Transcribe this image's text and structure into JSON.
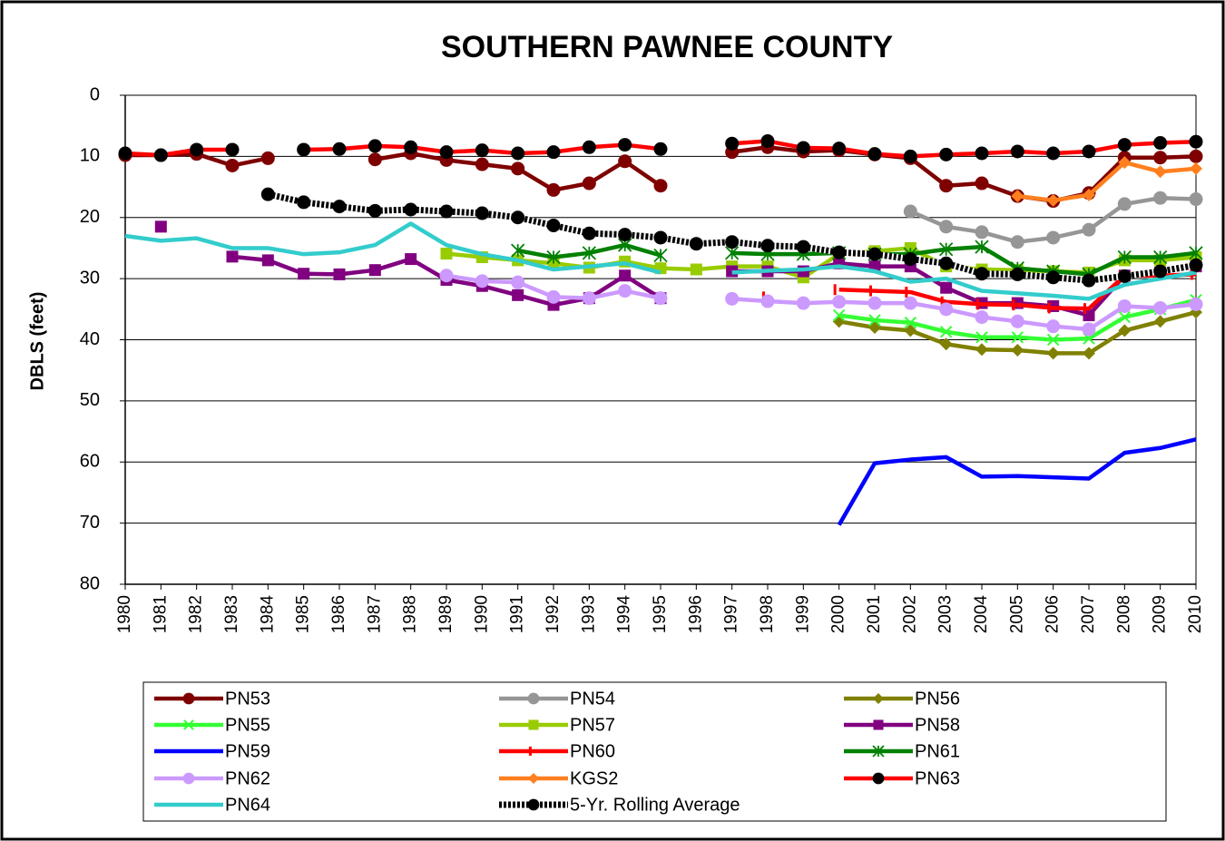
{
  "chart_data": {
    "type": "line",
    "title": "SOUTHERN PAWNEE COUNTY",
    "ylabel": "DBLS (feet)",
    "categories": [
      "1980",
      "1981",
      "1982",
      "1983",
      "1984",
      "1985",
      "1986",
      "1987",
      "1988",
      "1989",
      "1990",
      "1991",
      "1992",
      "1993",
      "1994",
      "1995",
      "1996",
      "1997",
      "1998",
      "1999",
      "2000",
      "2001",
      "2002",
      "2003",
      "2004",
      "2005",
      "2006",
      "2007",
      "2008",
      "2009",
      "2010"
    ],
    "ylim": [
      0,
      80
    ],
    "yticks": [
      0,
      10,
      20,
      30,
      40,
      50,
      60,
      70,
      80
    ],
    "yinvert": true,
    "grid": true,
    "legend": "bottom",
    "series": [
      {
        "name": "PN53",
        "color": "#7f0000",
        "marker": "circle",
        "values": [
          9.8,
          9.8,
          9.6,
          11.5,
          10.3,
          null,
          null,
          10.5,
          9.5,
          10.6,
          11.3,
          12.0,
          15.5,
          14.4,
          10.8,
          14.8,
          null,
          9.3,
          8.5,
          9.2,
          9.0,
          9.7,
          10.3,
          14.8,
          14.4,
          16.5,
          17.3,
          16.0,
          10.2,
          10.2,
          10.0
        ]
      },
      {
        "name": "PN54",
        "color": "#969696",
        "marker": "circle",
        "values": [
          null,
          null,
          null,
          null,
          null,
          null,
          null,
          null,
          null,
          null,
          null,
          null,
          null,
          null,
          null,
          null,
          null,
          null,
          null,
          null,
          null,
          null,
          19.0,
          21.5,
          22.4,
          24.0,
          23.3,
          22.0,
          17.8,
          16.8,
          17.0
        ]
      },
      {
        "name": "PN56",
        "color": "#808000",
        "marker": "diamond",
        "values": [
          null,
          null,
          null,
          null,
          null,
          null,
          null,
          null,
          null,
          null,
          null,
          null,
          null,
          null,
          null,
          null,
          null,
          null,
          null,
          null,
          37.0,
          38.0,
          38.5,
          40.7,
          41.6,
          41.7,
          42.2,
          42.2,
          38.5,
          37.0,
          35.5
        ]
      },
      {
        "name": "PN55",
        "color": "#33ff33",
        "marker": "x",
        "values": [
          null,
          null,
          null,
          null,
          null,
          null,
          null,
          null,
          null,
          null,
          null,
          null,
          null,
          null,
          null,
          null,
          null,
          null,
          null,
          null,
          36.0,
          36.8,
          37.2,
          38.7,
          39.6,
          39.6,
          40.0,
          39.8,
          36.3,
          35.0,
          33.5
        ]
      },
      {
        "name": "PN57",
        "color": "#99cc00",
        "marker": "square",
        "values": [
          null,
          null,
          null,
          null,
          null,
          null,
          null,
          null,
          null,
          25.9,
          26.5,
          27.0,
          27.5,
          28.2,
          27.2,
          28.3,
          28.5,
          28.0,
          28.0,
          29.8,
          26.0,
          25.5,
          25.0,
          28.0,
          28.5,
          28.6,
          28.8,
          29.0,
          27.0,
          27.0,
          26.5
        ]
      },
      {
        "name": "PN58",
        "color": "#800080",
        "marker": "square",
        "values": [
          null,
          21.5,
          null,
          26.4,
          27.0,
          29.2,
          29.3,
          28.6,
          26.8,
          30.2,
          31.2,
          32.7,
          34.3,
          33.2,
          29.5,
          33.2,
          null,
          28.8,
          28.8,
          28.8,
          27.5,
          28.0,
          28.0,
          31.5,
          34.0,
          34.0,
          34.5,
          36.0,
          29.5,
          29.0,
          28.0
        ]
      },
      {
        "name": "PN59",
        "color": "#0000ff",
        "marker": "none",
        "values": [
          null,
          null,
          null,
          null,
          null,
          null,
          null,
          null,
          null,
          null,
          null,
          null,
          null,
          null,
          null,
          null,
          null,
          null,
          null,
          null,
          70.3,
          60.2,
          59.6,
          59.2,
          62.4,
          62.3,
          62.5,
          62.7,
          58.5,
          57.7,
          56.3
        ]
      },
      {
        "name": "PN60",
        "color": "#ff0000",
        "marker": "dash",
        "values": [
          null,
          null,
          null,
          null,
          null,
          null,
          null,
          null,
          null,
          null,
          null,
          null,
          null,
          null,
          null,
          null,
          null,
          null,
          33.0,
          null,
          31.8,
          32.0,
          32.2,
          33.8,
          34.2,
          34.3,
          34.8,
          34.9,
          29.5,
          29.5,
          29.3
        ]
      },
      {
        "name": "PN61",
        "color": "#008000",
        "marker": "asterisk",
        "values": [
          null,
          null,
          null,
          null,
          null,
          null,
          null,
          null,
          null,
          null,
          null,
          25.4,
          26.5,
          25.8,
          24.5,
          26.2,
          null,
          25.8,
          26.0,
          26.0,
          25.8,
          26.0,
          26.0,
          25.2,
          24.8,
          28.3,
          28.8,
          29.3,
          26.5,
          26.5,
          25.8
        ]
      },
      {
        "name": "PN62",
        "color": "#cc99ff",
        "marker": "circle",
        "values": [
          null,
          null,
          null,
          null,
          null,
          null,
          null,
          null,
          null,
          29.5,
          30.4,
          30.6,
          33.0,
          33.2,
          32.0,
          33.2,
          null,
          33.3,
          33.7,
          34.0,
          33.8,
          34.0,
          34.0,
          35.0,
          36.3,
          37.0,
          37.8,
          38.3,
          34.5,
          34.8,
          34.2
        ]
      },
      {
        "name": "KGS2",
        "color": "#ff7f1f",
        "marker": "diamond",
        "values": [
          null,
          null,
          null,
          null,
          null,
          null,
          null,
          null,
          null,
          null,
          null,
          null,
          null,
          null,
          null,
          null,
          null,
          null,
          null,
          null,
          null,
          null,
          null,
          null,
          null,
          16.5,
          17.2,
          16.3,
          11.0,
          12.5,
          12.0
        ]
      },
      {
        "name": "PN63",
        "color": "#ff0000",
        "marker": "circle",
        "marker_color": "#000000",
        "values": [
          9.5,
          9.8,
          8.9,
          8.9,
          null,
          8.9,
          8.8,
          8.3,
          8.5,
          9.3,
          9.0,
          9.5,
          9.3,
          8.5,
          8.1,
          8.8,
          null,
          7.9,
          7.5,
          8.6,
          8.7,
          9.6,
          10.0,
          9.7,
          9.5,
          9.2,
          9.5,
          9.2,
          8.1,
          7.8,
          7.6
        ]
      },
      {
        "name": "PN64",
        "color": "#33cccc",
        "marker": "none",
        "values": [
          23.0,
          23.8,
          23.4,
          25.0,
          25.0,
          26.0,
          25.7,
          24.5,
          21.0,
          24.5,
          26.0,
          27.0,
          28.5,
          28.0,
          27.5,
          29.0,
          null,
          29.0,
          28.7,
          28.5,
          28.0,
          28.8,
          30.5,
          30.0,
          32.0,
          32.4,
          32.8,
          33.3,
          31.0,
          30.0,
          29.0
        ]
      },
      {
        "name": "5-Yr. Rolling  Average",
        "color": "#000000",
        "marker": "circle",
        "line_style": "dotted",
        "values": [
          null,
          null,
          null,
          null,
          16.2,
          17.5,
          18.2,
          18.9,
          18.7,
          19.0,
          19.3,
          20.0,
          21.3,
          22.6,
          22.8,
          23.3,
          24.3,
          24.0,
          24.6,
          24.8,
          25.7,
          26.0,
          26.8,
          27.5,
          29.2,
          29.3,
          29.8,
          30.3,
          29.6,
          28.8,
          27.8
        ]
      }
    ]
  }
}
